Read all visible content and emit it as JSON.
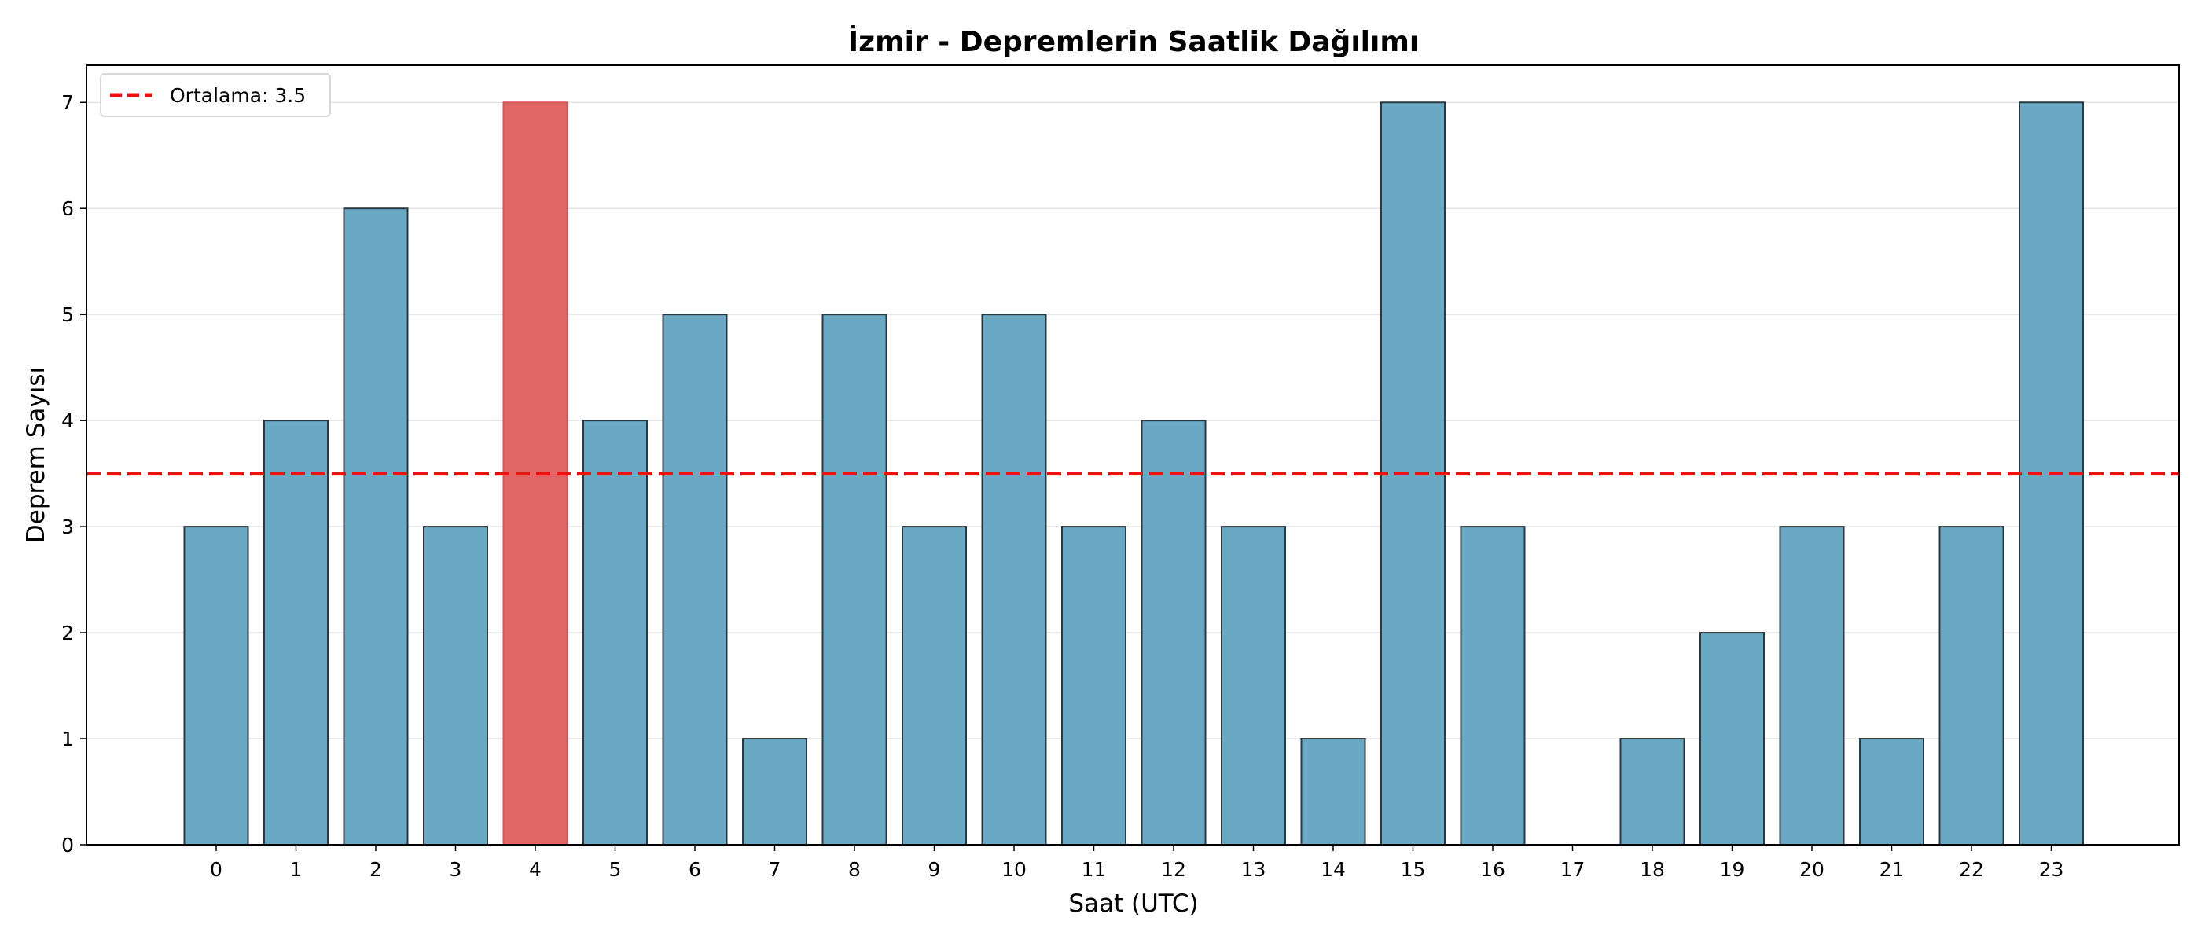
{
  "chart_data": {
    "type": "bar",
    "title": "İzmir - Depremlerin Saatlik Dağılımı",
    "xlabel": "Saat (UTC)",
    "ylabel": "Deprem Sayısı",
    "categories": [
      "0",
      "1",
      "2",
      "3",
      "4",
      "5",
      "6",
      "7",
      "8",
      "9",
      "10",
      "11",
      "12",
      "13",
      "14",
      "15",
      "16",
      "17",
      "18",
      "19",
      "20",
      "21",
      "22",
      "23"
    ],
    "values": [
      3,
      4,
      6,
      3,
      7,
      4,
      5,
      1,
      5,
      3,
      5,
      3,
      4,
      3,
      1,
      7,
      3,
      0,
      1,
      2,
      3,
      1,
      3,
      7
    ],
    "highlight_index": 4,
    "ylim": [
      0,
      7.35
    ],
    "yticks": [
      0,
      1,
      2,
      3,
      4,
      5,
      6,
      7
    ],
    "grid": "y",
    "mean_line": {
      "value": 3.5,
      "label": "Ortalama: 3.5"
    },
    "legend_position": "top-left",
    "colors": {
      "bar": "#6aa9c4",
      "bar_highlight": "#e36666",
      "bar_edge": "#2b3a40",
      "mean_line": "#ee1111",
      "grid": "#e4e4e4"
    }
  }
}
